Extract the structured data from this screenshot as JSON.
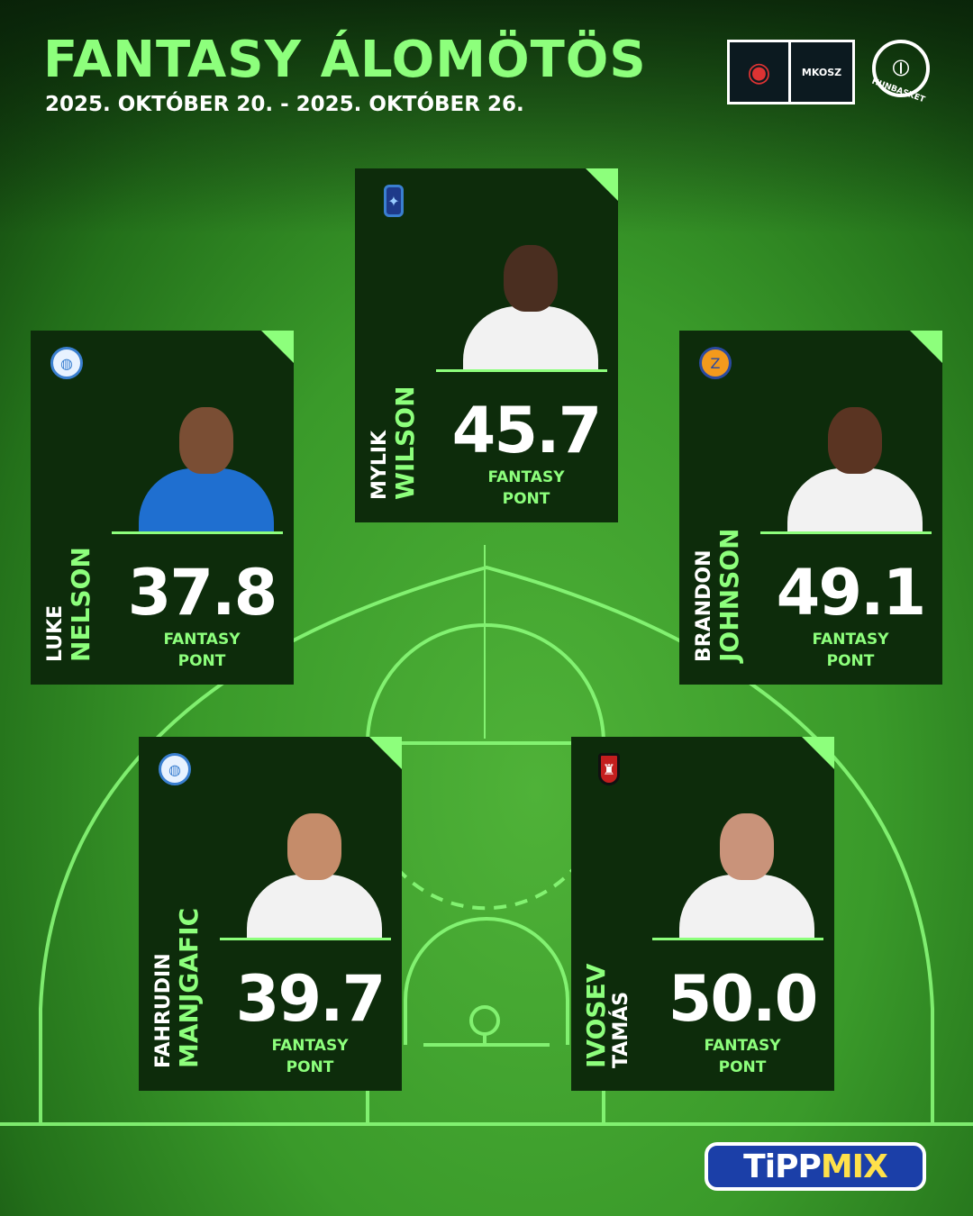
{
  "header": {
    "title": "FANTASY ÁLOMÖTÖS",
    "dates": "2025. OKTÓBER 20. - 2025. OKTÓBER 26."
  },
  "logos": {
    "federation": "MKOSZ",
    "hunbasket": "HUNBASKET",
    "sponsor_a": "TiPP",
    "sponsor_b": "MIX"
  },
  "accent": "#8dff7c",
  "players": [
    {
      "first": "MYLIK",
      "last": "WILSON",
      "score": "45.7",
      "label1": "FANTASY",
      "label2": "PONT"
    },
    {
      "first": "LUKE",
      "last": "NELSON",
      "score": "37.8",
      "label1": "FANTASY",
      "label2": "PONT"
    },
    {
      "first": "BRANDON",
      "last": "JOHNSON",
      "score": "49.1",
      "label1": "FANTASY",
      "label2": "PONT"
    },
    {
      "first": "FAHRUDIN",
      "last": "MANJGAFIC",
      "score": "39.7",
      "label1": "FANTASY",
      "label2": "PONT"
    },
    {
      "first": "TAMÁS",
      "last": "IVOSEV",
      "score": "50.0",
      "label1": "FANTASY",
      "label2": "PONT"
    }
  ]
}
